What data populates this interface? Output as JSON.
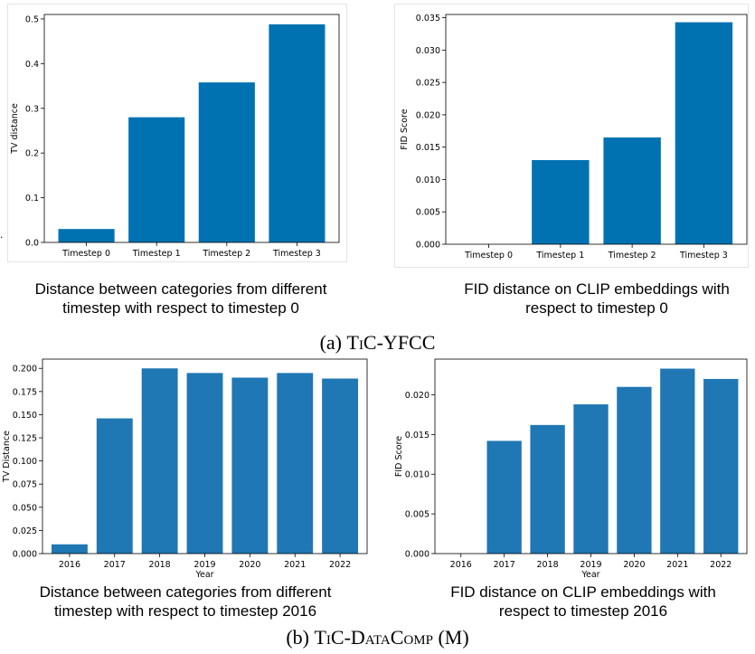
{
  "stray_mark": ".",
  "captions": {
    "a1": [
      "Distance between categories from different",
      "timestep with respect to timestep 0"
    ],
    "a2": [
      "FID distance on CLIP embeddings with",
      "respect to timestep 0"
    ],
    "b1": [
      "Distance between categories from different",
      "timestep with respect to timestep 2016"
    ],
    "b2": [
      "FID distance on CLIP embeddings with",
      "respect to timestep 2016"
    ]
  },
  "subfigures": {
    "a": {
      "prefix": "(a) ",
      "name": "TiC-YFCC"
    },
    "b": {
      "prefix": "(b) ",
      "name": "TiC-DataComp (M)"
    }
  },
  "colors": {
    "bar_a": "#0072b2",
    "bar_b": "#1f77b4"
  },
  "chart_data": [
    {
      "type": "bar",
      "categories": [
        "Timestep 0",
        "Timestep 1",
        "Timestep 2",
        "Timestep 3"
      ],
      "values": [
        0.03,
        0.28,
        0.358,
        0.488
      ],
      "ylabel": "TV distance",
      "xlabel": "",
      "ylim": [
        0,
        0.51
      ],
      "yticks": [
        "0.0",
        "0.1",
        "0.2",
        "0.3",
        "0.4",
        "0.5"
      ],
      "ytick_values": [
        0,
        0.1,
        0.2,
        0.3,
        0.4,
        0.5
      ]
    },
    {
      "type": "bar",
      "categories": [
        "Timestep 0",
        "Timestep 1",
        "Timestep 2",
        "Timestep 3"
      ],
      "values": [
        0.0,
        0.013,
        0.0165,
        0.0343
      ],
      "ylabel": "FID Score",
      "xlabel": "",
      "ylim": [
        0,
        0.0355
      ],
      "yticks": [
        "0.000",
        "0.005",
        "0.010",
        "0.015",
        "0.020",
        "0.025",
        "0.030",
        "0.035"
      ],
      "ytick_values": [
        0,
        0.005,
        0.01,
        0.015,
        0.02,
        0.025,
        0.03,
        0.035
      ]
    },
    {
      "type": "bar",
      "categories": [
        "2016",
        "2017",
        "2018",
        "2019",
        "2020",
        "2021",
        "2022"
      ],
      "values": [
        0.01,
        0.146,
        0.2,
        0.195,
        0.19,
        0.195,
        0.189
      ],
      "ylabel": "TV Distance",
      "xlabel": "Year",
      "ylim": [
        0,
        0.21
      ],
      "yticks": [
        "0.000",
        "0.025",
        "0.050",
        "0.075",
        "0.100",
        "0.125",
        "0.150",
        "0.175",
        "0.200"
      ],
      "ytick_values": [
        0,
        0.025,
        0.05,
        0.075,
        0.1,
        0.125,
        0.15,
        0.175,
        0.2
      ]
    },
    {
      "type": "bar",
      "categories": [
        "2016",
        "2017",
        "2018",
        "2019",
        "2020",
        "2021",
        "2022"
      ],
      "values": [
        0.0,
        0.0142,
        0.0162,
        0.0188,
        0.021,
        0.0233,
        0.022
      ],
      "ylabel": "FID Score",
      "xlabel": "Year",
      "ylim": [
        0,
        0.0245
      ],
      "yticks": [
        "0.000",
        "0.005",
        "0.010",
        "0.015",
        "0.020"
      ],
      "ytick_values": [
        0,
        0.005,
        0.01,
        0.015,
        0.02
      ]
    }
  ]
}
